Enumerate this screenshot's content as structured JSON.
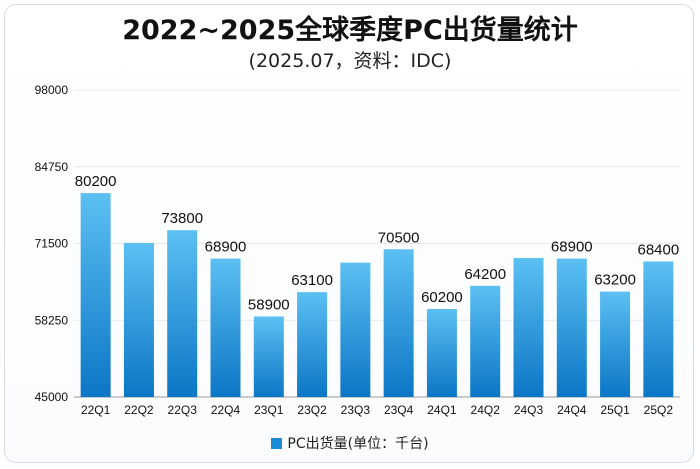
{
  "header": {
    "title": "2022~2025全球季度PC出货量统计",
    "subtitle": "(2025.07，资料：IDC)"
  },
  "colors": {
    "bar_top": "#5cc0f2",
    "bar_bottom": "#0b76c6",
    "grid": "#e6e9ee",
    "axis": "#999999",
    "text": "#111111"
  },
  "chart_data": {
    "type": "bar",
    "title": "2022~2025全球季度PC出货量统计",
    "subtitle": "(2025.07，资料：IDC)",
    "categories": [
      "22Q1",
      "22Q2",
      "22Q3",
      "22Q4",
      "23Q1",
      "23Q2",
      "23Q3",
      "23Q4",
      "24Q1",
      "24Q2",
      "24Q3",
      "24Q4",
      "25Q1",
      "25Q2"
    ],
    "series": [
      {
        "name": "PC出货量(单位：千台)",
        "values": [
          80200,
          71600,
          73800,
          68900,
          58900,
          63100,
          68200,
          70500,
          60200,
          64200,
          69000,
          68900,
          63200,
          68400
        ]
      }
    ],
    "data_labels": [
      "80200",
      "",
      "73800",
      "68900",
      "58900",
      "63100",
      "",
      "70500",
      "60200",
      "64200",
      "",
      "68900",
      "63200",
      "68400"
    ],
    "yticks": [
      "45000",
      "58250",
      "71500",
      "84750",
      "98000"
    ],
    "ylim": [
      45000,
      98000
    ],
    "legend_position": "bottom",
    "grid": true
  }
}
